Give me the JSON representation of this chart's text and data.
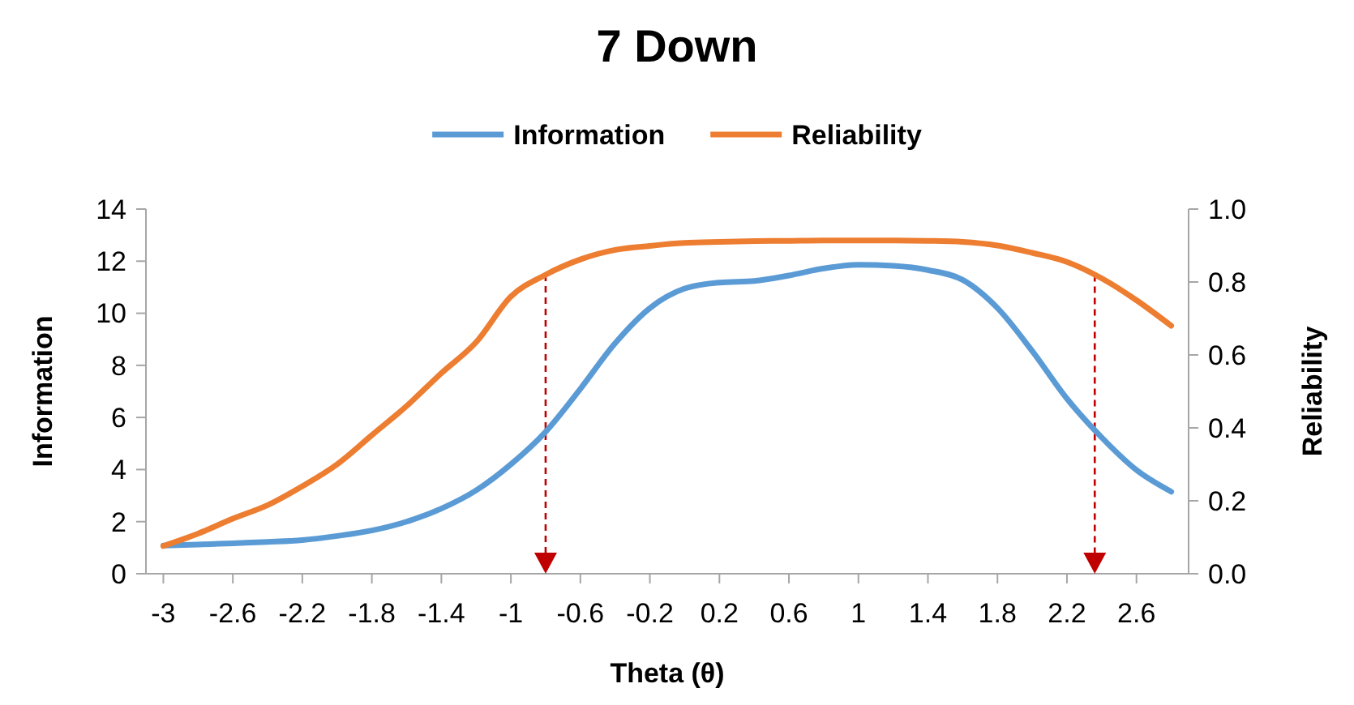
{
  "chart_data": {
    "type": "line",
    "title": "7 Down",
    "xlabel": "Theta (θ)",
    "ylabel": "Information",
    "y2label": "Reliability",
    "x": [
      -3,
      -2.8,
      -2.6,
      -2.4,
      -2.2,
      -2,
      -1.8,
      -1.6,
      -1.4,
      -1.2,
      -1,
      -0.8,
      -0.6,
      -0.4,
      -0.2,
      0,
      0.2,
      0.4,
      0.6,
      0.8,
      1,
      1.2,
      1.4,
      1.6,
      1.8,
      2,
      2.2,
      2.4,
      2.6,
      2.8
    ],
    "series": [
      {
        "name": "Information",
        "color": "#5b9bd5",
        "values": [
          1.08,
          1.12,
          1.17,
          1.22,
          1.29,
          1.45,
          1.66,
          2.0,
          2.5,
          3.2,
          4.2,
          5.45,
          7.1,
          8.85,
          10.2,
          10.95,
          11.18,
          11.24,
          11.45,
          11.72,
          11.86,
          11.82,
          11.66,
          11.28,
          10.2,
          8.55,
          6.72,
          5.23,
          3.98,
          3.15
        ]
      },
      {
        "name": "Reliability",
        "color": "#ed7d31",
        "axis": "y2",
        "values": [
          0.076,
          0.11,
          0.151,
          0.188,
          0.24,
          0.3,
          0.38,
          0.46,
          0.55,
          0.635,
          0.76,
          0.82,
          0.862,
          0.888,
          0.899,
          0.907,
          0.91,
          0.912,
          0.913,
          0.914,
          0.914,
          0.914,
          0.913,
          0.91,
          0.9,
          0.88,
          0.855,
          0.81,
          0.75,
          0.68
        ]
      }
    ],
    "xlim": [
      -3.1,
      2.9
    ],
    "xticks": [
      -3,
      -2.6,
      -2.2,
      -1.8,
      -1.4,
      -1,
      -0.6,
      -0.2,
      0.2,
      0.6,
      1,
      1.4,
      1.8,
      2.2,
      2.6
    ],
    "ylim": [
      0,
      14
    ],
    "yticks": [
      0,
      2,
      4,
      6,
      8,
      10,
      12,
      14
    ],
    "y2lim": [
      0,
      1
    ],
    "y2ticks": [
      {
        "value": 0,
        "label": "0.0"
      },
      {
        "value": 0.2,
        "label": "0.2"
      },
      {
        "value": 0.4,
        "label": "0.4"
      },
      {
        "value": 0.6,
        "label": "0.6"
      },
      {
        "value": 0.8,
        "label": "0.8"
      },
      {
        "value": 1,
        "label": "1.0"
      }
    ],
    "ref_lines": [
      {
        "axis": "x",
        "value": -0.8,
        "color": "#c00000",
        "line_style": "dashed"
      },
      {
        "axis": "x",
        "value": 2.36,
        "color": "#c00000",
        "line_style": "dashed"
      }
    ],
    "legend": "top",
    "grid": false,
    "marker": "none",
    "line_style": "solid"
  }
}
